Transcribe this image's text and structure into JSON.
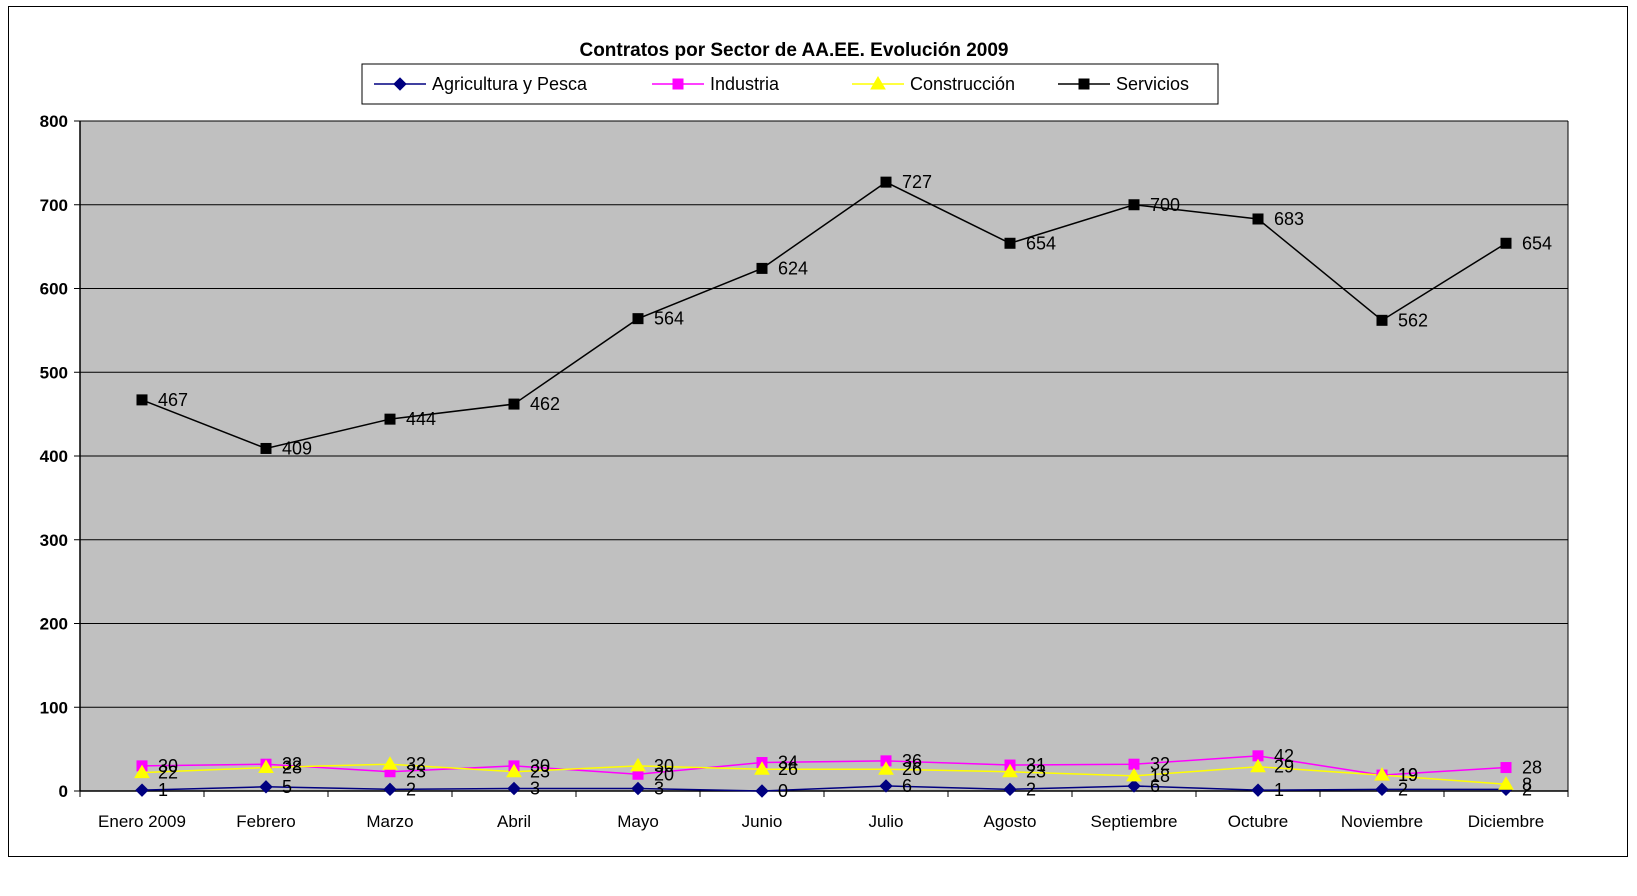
{
  "chart_data": {
    "type": "line",
    "title": "Contratos por Sector de AA.EE. Evolución 2009",
    "xlabel": "",
    "ylabel": "",
    "categories": [
      "Enero 2009",
      "Febrero",
      "Marzo",
      "Abril",
      "Mayo",
      "Junio",
      "Julio",
      "Agosto",
      "Septiembre",
      "Octubre",
      "Noviembre",
      "Diciembre"
    ],
    "ylim": [
      0,
      800
    ],
    "yticks": [
      "0",
      "100",
      "200",
      "300",
      "400",
      "500",
      "600",
      "700",
      "800"
    ],
    "grid": true,
    "legend_position": "top",
    "plot_background": "#c0c0c0",
    "series": [
      {
        "name": "Agricultura y Pesca",
        "color": "#000080",
        "marker": "diamond",
        "values": [
          1,
          5,
          2,
          3,
          3,
          0,
          6,
          2,
          6,
          1,
          2,
          2
        ]
      },
      {
        "name": "Industria",
        "color": "#ff00ff",
        "marker": "square",
        "values": [
          30,
          32,
          23,
          30,
          20,
          34,
          36,
          31,
          32,
          42,
          19,
          28
        ]
      },
      {
        "name": "Construcción",
        "color": "#ffff00",
        "marker": "triangle",
        "values": [
          22,
          28,
          32,
          23,
          30,
          26,
          26,
          23,
          18,
          29,
          19,
          8
        ]
      },
      {
        "name": "Servicios",
        "color": "#000000",
        "marker": "square",
        "values": [
          467,
          409,
          444,
          462,
          564,
          624,
          727,
          654,
          700,
          683,
          562,
          654
        ]
      }
    ]
  }
}
